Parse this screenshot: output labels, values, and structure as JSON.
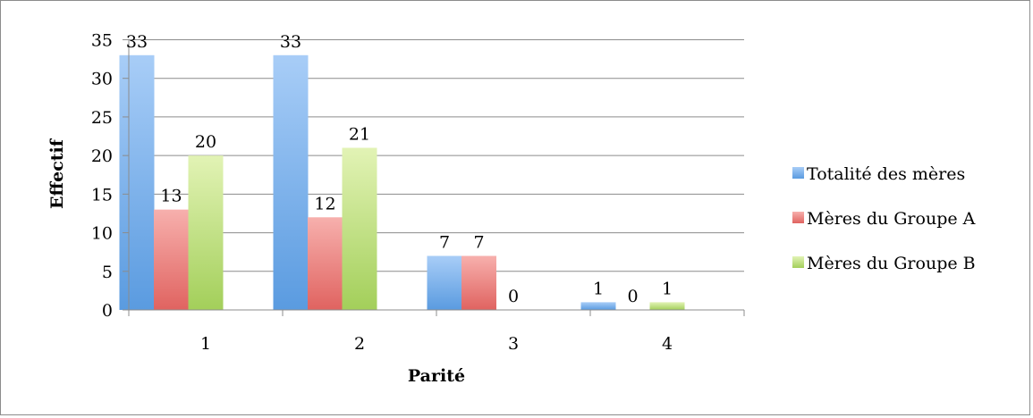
{
  "chart_data": {
    "type": "bar",
    "title": "",
    "xlabel": "Parité",
    "ylabel": "Effectif",
    "categories": [
      "1",
      "2",
      "3",
      "4"
    ],
    "series": [
      {
        "name": "Totalité des mères",
        "values": [
          33,
          33,
          7,
          1
        ],
        "color": "#5a9be0",
        "color_light": "#a8cdf7"
      },
      {
        "name": "Mères du Groupe A",
        "values": [
          13,
          12,
          7,
          0
        ],
        "color": "#e06360",
        "color_light": "#f7b0ad"
      },
      {
        "name": "Mères du Groupe B",
        "values": [
          20,
          21,
          0,
          1
        ],
        "color": "#a3cf5a",
        "color_light": "#e2f3b5"
      }
    ],
    "ylim": [
      0,
      35
    ],
    "yticks": [
      0,
      5,
      10,
      15,
      20,
      25,
      30,
      35
    ],
    "grid": true,
    "legend_position": "right",
    "data_labels": true
  }
}
